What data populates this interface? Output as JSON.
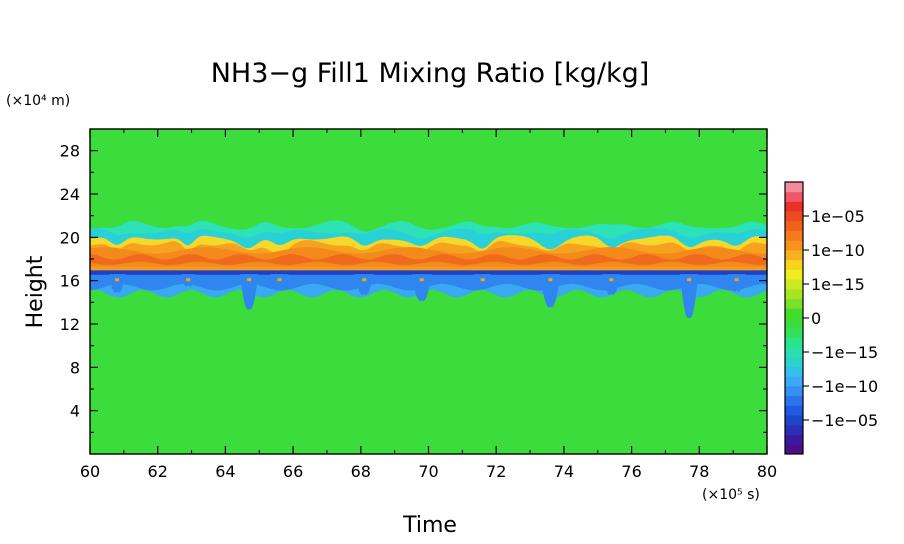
{
  "chart_data": {
    "type": "heatmap",
    "title": "NH3−g Fill1 Mixing Ratio [kg/kg]",
    "xlabel": "Time",
    "ylabel": "Height",
    "x_unit_label": "(×10⁵ s)",
    "y_unit_label": "(×10⁴ m)",
    "xlim": [
      60,
      80
    ],
    "ylim": [
      0,
      30
    ],
    "x_ticks": [
      60,
      62,
      64,
      66,
      68,
      70,
      72,
      74,
      76,
      78,
      80
    ],
    "x_tick_labels": [
      "60",
      "62",
      "64",
      "66",
      "68",
      "70",
      "72",
      "74",
      "76",
      "78",
      "80"
    ],
    "y_ticks": [
      4,
      8,
      12,
      16,
      20,
      24,
      28
    ],
    "y_tick_labels": [
      "4",
      "8",
      "12",
      "16",
      "20",
      "24",
      "28"
    ],
    "background_value": "0",
    "colorbar": {
      "labels": [
        "1e−05",
        "1e−10",
        "1e−15",
        "0",
        "−1e−15",
        "−1e−10",
        "−1e−05"
      ],
      "colors": [
        "#4b0d8c",
        "#3a1aa0",
        "#2a30b5",
        "#1f44cc",
        "#1f5ae0",
        "#2a74ec",
        "#3690f2",
        "#3aaaf4",
        "#34c0e8",
        "#2cd2cc",
        "#28e0ac",
        "#2ae48a",
        "#33e05a",
        "#3cdc3c",
        "#44dc28",
        "#7ae028",
        "#a6e424",
        "#ccea22",
        "#eeee20",
        "#f8d21e",
        "#f8b01c",
        "#f8921c",
        "#f47a1c",
        "#f0621c",
        "#ec4a20",
        "#e83226",
        "#f0566a",
        "#f48a9a"
      ]
    },
    "layers": [
      {
        "name": "upper-thin-cyan",
        "color": "#2ee2b8"
      },
      {
        "name": "upper-cyan",
        "color": "#28d0d8"
      },
      {
        "name": "yellow-band",
        "color": "#f5d82a"
      },
      {
        "name": "orange-band",
        "color": "#f7a21f"
      },
      {
        "name": "deep-orange-band",
        "color": "#f48a1c"
      },
      {
        "name": "red-orange-core",
        "color": "#ef6a1c"
      },
      {
        "name": "orange-base",
        "color": "#f49a1e"
      },
      {
        "name": "boundary-line",
        "color": "#1f3fc8"
      },
      {
        "name": "lower-blue",
        "color": "#2f86ee"
      },
      {
        "name": "lower-light-blue",
        "color": "#3aa8f2"
      }
    ],
    "plume_events": [
      {
        "x": 60.8,
        "depth": 1.6,
        "width": 0.25
      },
      {
        "x": 62.9,
        "depth": 1.0,
        "width": 0.2
      },
      {
        "x": 64.7,
        "depth": 3.2,
        "width": 0.3
      },
      {
        "x": 65.6,
        "depth": 1.4,
        "width": 0.3
      },
      {
        "x": 68.1,
        "depth": 1.8,
        "width": 0.3
      },
      {
        "x": 69.8,
        "depth": 2.4,
        "width": 0.35
      },
      {
        "x": 71.6,
        "depth": 1.0,
        "width": 0.25
      },
      {
        "x": 73.6,
        "depth": 3.0,
        "width": 0.35
      },
      {
        "x": 75.4,
        "depth": 1.8,
        "width": 0.3
      },
      {
        "x": 77.7,
        "depth": 4.0,
        "width": 0.3
      },
      {
        "x": 79.1,
        "depth": 1.5,
        "width": 0.3
      }
    ]
  }
}
